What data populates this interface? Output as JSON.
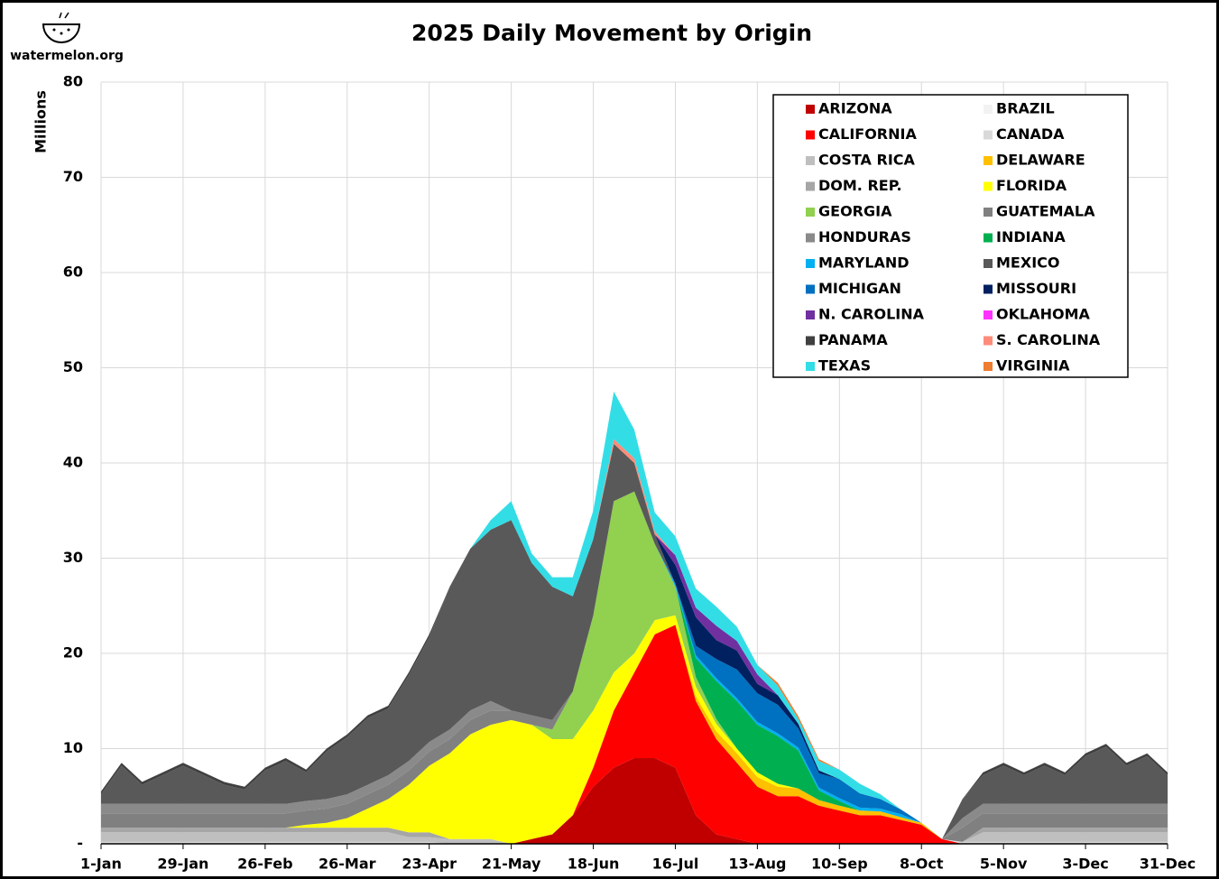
{
  "chart_data": {
    "type": "stacked_area",
    "title": "2025 Daily Movement by Origin",
    "logo": "watermelon.org",
    "y_label": "Millions",
    "x": [
      0,
      7,
      14,
      21,
      28,
      35,
      42,
      49,
      56,
      63,
      70,
      77,
      84,
      91,
      98,
      105,
      112,
      119,
      126,
      133,
      140,
      147,
      154,
      161,
      168,
      175,
      182,
      189,
      196,
      203,
      210,
      217,
      224,
      231,
      238,
      245,
      252,
      259,
      266,
      273,
      280,
      287,
      294,
      301,
      308,
      315,
      322,
      329,
      336,
      343,
      350,
      357,
      364
    ],
    "xlim": [
      0,
      364
    ],
    "xticks": [
      {
        "value": 0,
        "label": "1-Jan"
      },
      {
        "value": 28,
        "label": "29-Jan"
      },
      {
        "value": 56,
        "label": "26-Feb"
      },
      {
        "value": 84,
        "label": "26-Mar"
      },
      {
        "value": 112,
        "label": "23-Apr"
      },
      {
        "value": 140,
        "label": "21-May"
      },
      {
        "value": 168,
        "label": "18-Jun"
      },
      {
        "value": 196,
        "label": "16-Jul"
      },
      {
        "value": 224,
        "label": "13-Aug"
      },
      {
        "value": 252,
        "label": "10-Sep"
      },
      {
        "value": 280,
        "label": "8-Oct"
      },
      {
        "value": 308,
        "label": "5-Nov"
      },
      {
        "value": 336,
        "label": "3-Dec"
      },
      {
        "value": 364,
        "label": "31-Dec"
      }
    ],
    "ylim": [
      0,
      80
    ],
    "yticks": [
      {
        "value": 0,
        "label": "-"
      },
      10,
      20,
      30,
      40,
      50,
      60,
      70,
      80
    ],
    "grid": true,
    "legend": "upper right",
    "series": [
      {
        "name": "ARIZONA",
        "color": "#c00000",
        "values": [
          0,
          0,
          0,
          0,
          0,
          0,
          0,
          0,
          0,
          0,
          0,
          0,
          0,
          0,
          0,
          0,
          0,
          0,
          0,
          0,
          0,
          0.5,
          1,
          3,
          6,
          8,
          9,
          9,
          8,
          3,
          1,
          0.5,
          0,
          0,
          0,
          0,
          0,
          0,
          0,
          0,
          0,
          0,
          0,
          0,
          0,
          0,
          0,
          0,
          0,
          0,
          0,
          0,
          0
        ]
      },
      {
        "name": "BRAZIL",
        "color": "#f2f2f2",
        "values": [
          0,
          0,
          0,
          0,
          0,
          0,
          0,
          0,
          0,
          0,
          0,
          0,
          0,
          0,
          0,
          0,
          0,
          0,
          0,
          0,
          0,
          0,
          0,
          0,
          0,
          0,
          0,
          0,
          0,
          0,
          0,
          0,
          0,
          0,
          0,
          0,
          0,
          0,
          0,
          0,
          0,
          0,
          0,
          0,
          0,
          0,
          0,
          0,
          0,
          0,
          0,
          0,
          0
        ]
      },
      {
        "name": "CALIFORNIA",
        "color": "#ff0000",
        "values": [
          0,
          0,
          0,
          0,
          0,
          0,
          0,
          0,
          0,
          0,
          0,
          0,
          0,
          0,
          0,
          0,
          0,
          0,
          0,
          0,
          0,
          0,
          0,
          0,
          2,
          6,
          9,
          13,
          15,
          12,
          10,
          8,
          6,
          5,
          5,
          4,
          3.5,
          3,
          3,
          2.5,
          2,
          0.5,
          0,
          0,
          0,
          0,
          0,
          0,
          0,
          0,
          0,
          0,
          0
        ]
      },
      {
        "name": "CANADA",
        "color": "#d9d9d9",
        "values": [
          0.2,
          0.2,
          0.2,
          0.2,
          0.2,
          0.2,
          0.2,
          0.2,
          0.2,
          0.2,
          0.2,
          0.2,
          0.2,
          0.2,
          0.2,
          0.2,
          0.2,
          0,
          0,
          0,
          0,
          0,
          0,
          0,
          0,
          0,
          0,
          0,
          0,
          0,
          0,
          0,
          0,
          0,
          0,
          0,
          0,
          0,
          0,
          0,
          0,
          0,
          0.2,
          0.2,
          0.2,
          0.2,
          0.2,
          0.2,
          0.2,
          0.2,
          0.2,
          0.2,
          0.2
        ]
      },
      {
        "name": "COSTA RICA",
        "color": "#bfbfbf",
        "values": [
          1,
          1,
          1,
          1,
          1,
          1,
          1,
          1,
          1,
          1,
          1,
          1,
          1,
          1,
          1,
          0.5,
          0.5,
          0.5,
          0.5,
          0.5,
          0,
          0,
          0,
          0,
          0,
          0,
          0,
          0,
          0,
          0,
          0,
          0,
          0,
          0,
          0,
          0,
          0,
          0,
          0,
          0,
          0,
          0,
          0,
          1,
          1,
          1,
          1,
          1,
          1,
          1,
          1,
          1,
          1
        ]
      },
      {
        "name": "DELAWARE",
        "color": "#ffc000",
        "values": [
          0,
          0,
          0,
          0,
          0,
          0,
          0,
          0,
          0,
          0,
          0,
          0,
          0,
          0,
          0,
          0,
          0,
          0,
          0,
          0,
          0,
          0,
          0,
          0,
          0,
          0,
          0,
          0,
          0,
          0.5,
          0.8,
          1,
          1,
          1,
          0.8,
          0.6,
          0.5,
          0.5,
          0.4,
          0.3,
          0.2,
          0,
          0,
          0,
          0,
          0,
          0,
          0,
          0,
          0,
          0,
          0,
          0
        ]
      },
      {
        "name": "DOM. REP.",
        "color": "#a6a6a6",
        "values": [
          0.5,
          0.5,
          0.5,
          0.5,
          0.5,
          0.5,
          0.5,
          0.5,
          0.5,
          0.5,
          0.5,
          0.5,
          0.5,
          0.5,
          0.5,
          0.5,
          0.5,
          0,
          0,
          0,
          0,
          0,
          0,
          0,
          0,
          0,
          0,
          0,
          0,
          0,
          0,
          0,
          0,
          0,
          0,
          0,
          0,
          0,
          0,
          0,
          0,
          0,
          0,
          0.5,
          0.5,
          0.5,
          0.5,
          0.5,
          0.5,
          0.5,
          0.5,
          0.5,
          0.5
        ]
      },
      {
        "name": "FLORIDA",
        "color": "#ffff00",
        "values": [
          0,
          0,
          0,
          0,
          0,
          0,
          0,
          0,
          0,
          0,
          0.3,
          0.5,
          1,
          2,
          3,
          5,
          7,
          9,
          11,
          12,
          13,
          12,
          10,
          8,
          6,
          4,
          2,
          1.5,
          1,
          1,
          0.8,
          0.5,
          0.5,
          0.3,
          0,
          0,
          0,
          0,
          0,
          0,
          0,
          0,
          0,
          0,
          0,
          0,
          0,
          0,
          0,
          0,
          0,
          0,
          0
        ]
      },
      {
        "name": "GEORGIA",
        "color": "#92d050",
        "values": [
          0,
          0,
          0,
          0,
          0,
          0,
          0,
          0,
          0,
          0,
          0,
          0,
          0,
          0,
          0,
          0,
          0,
          0,
          0,
          0,
          0,
          0,
          1,
          5,
          10,
          18,
          17,
          8,
          3,
          1,
          0.5,
          0,
          0,
          0,
          0,
          0,
          0,
          0,
          0,
          0,
          0,
          0,
          0,
          0,
          0,
          0,
          0,
          0,
          0,
          0,
          0,
          0,
          0
        ]
      },
      {
        "name": "GUATEMALA",
        "color": "#808080",
        "values": [
          1.5,
          1.5,
          1.5,
          1.5,
          1.5,
          1.5,
          1.5,
          1.5,
          1.5,
          1.5,
          1.5,
          1.5,
          1.5,
          1.5,
          1.5,
          1.5,
          1.5,
          1.5,
          1.5,
          1.5,
          1,
          1,
          1,
          0,
          0,
          0,
          0,
          0,
          0,
          0,
          0,
          0,
          0,
          0,
          0,
          0,
          0,
          0,
          0,
          0,
          0,
          0,
          1.5,
          1.5,
          1.5,
          1.5,
          1.5,
          1.5,
          1.5,
          1.5,
          1.5,
          1.5,
          1.5
        ]
      },
      {
        "name": "HONDURAS",
        "color": "#8a8a8a",
        "values": [
          1,
          1,
          1,
          1,
          1,
          1,
          1,
          1,
          1,
          1,
          1,
          1,
          1,
          1,
          1,
          1,
          1,
          1,
          1,
          1,
          0,
          0,
          0,
          0,
          0,
          0,
          0,
          0,
          0,
          0,
          0,
          0,
          0,
          0,
          0,
          0,
          0,
          0,
          0,
          0,
          0,
          0,
          1,
          1,
          1,
          1,
          1,
          1,
          1,
          1,
          1,
          1,
          1
        ]
      },
      {
        "name": "INDIANA",
        "color": "#00b050",
        "values": [
          0,
          0,
          0,
          0,
          0,
          0,
          0,
          0,
          0,
          0,
          0,
          0,
          0,
          0,
          0,
          0,
          0,
          0,
          0,
          0,
          0,
          0,
          0,
          0,
          0,
          0,
          0,
          0,
          0,
          2,
          4,
          5,
          5,
          5,
          4,
          1,
          0.5,
          0,
          0,
          0,
          0,
          0,
          0,
          0,
          0,
          0,
          0,
          0,
          0,
          0,
          0,
          0,
          0
        ]
      },
      {
        "name": "MARYLAND",
        "color": "#00b0f0",
        "values": [
          0,
          0,
          0,
          0,
          0,
          0,
          0,
          0,
          0,
          0,
          0,
          0,
          0,
          0,
          0,
          0,
          0,
          0,
          0,
          0,
          0,
          0,
          0,
          0,
          0,
          0,
          0,
          0,
          0.3,
          0.3,
          0.3,
          0.3,
          0.3,
          0.3,
          0.3,
          0.3,
          0.3,
          0.3,
          0.3,
          0.3,
          0,
          0,
          0,
          0,
          0,
          0,
          0,
          0,
          0,
          0,
          0,
          0,
          0
        ]
      },
      {
        "name": "MEXICO",
        "color": "#595959",
        "values": [
          1,
          4,
          2,
          3,
          4,
          3,
          2,
          1.5,
          3.5,
          4.5,
          3,
          5,
          6,
          7,
          7,
          9,
          11,
          15,
          17,
          18,
          20,
          16,
          14,
          10,
          8,
          6,
          3,
          1,
          0,
          0,
          0,
          0,
          0,
          0,
          0,
          0,
          0,
          0,
          0,
          0,
          0,
          0,
          2,
          3,
          4,
          3,
          4,
          3,
          5,
          6,
          4,
          5,
          3
        ]
      },
      {
        "name": "MICHIGAN",
        "color": "#0070c0",
        "values": [
          0,
          0,
          0,
          0,
          0,
          0,
          0,
          0,
          0,
          0,
          0,
          0,
          0,
          0,
          0,
          0,
          0,
          0,
          0,
          0,
          0,
          0,
          0,
          0,
          0,
          0,
          0,
          0,
          0,
          1,
          2,
          3,
          3,
          3,
          2,
          1.5,
          2,
          1.5,
          1,
          0.5,
          0,
          0,
          0,
          0,
          0,
          0,
          0,
          0,
          0,
          0,
          0,
          0,
          0
        ]
      },
      {
        "name": "MISSOURI",
        "color": "#002060",
        "values": [
          0,
          0,
          0,
          0,
          0,
          0,
          0,
          0,
          0,
          0,
          0,
          0,
          0,
          0,
          0,
          0,
          0,
          0,
          0,
          0,
          0,
          0,
          0,
          0,
          0,
          0,
          0,
          0,
          2,
          3,
          2,
          2,
          1,
          1,
          0.5,
          0.3,
          0,
          0,
          0,
          0,
          0,
          0,
          0,
          0,
          0,
          0,
          0,
          0,
          0,
          0,
          0,
          0,
          0
        ]
      },
      {
        "name": "N. CAROLINA",
        "color": "#7030a0",
        "values": [
          0,
          0,
          0,
          0,
          0,
          0,
          0,
          0,
          0,
          0,
          0,
          0,
          0,
          0,
          0,
          0,
          0,
          0,
          0,
          0,
          0,
          0,
          0,
          0,
          0,
          0,
          0,
          0,
          1,
          1,
          1.5,
          1,
          1,
          0,
          0,
          0,
          0,
          0,
          0,
          0,
          0,
          0,
          0,
          0,
          0,
          0,
          0,
          0,
          0,
          0,
          0,
          0,
          0
        ]
      },
      {
        "name": "OKLAHOMA",
        "color": "#ff33ff",
        "values": [
          0,
          0,
          0,
          0,
          0,
          0,
          0,
          0,
          0,
          0,
          0,
          0,
          0,
          0,
          0,
          0,
          0,
          0,
          0,
          0,
          0,
          0,
          0,
          0,
          0,
          0,
          0,
          0,
          0,
          0,
          0,
          0,
          0,
          0,
          0,
          0,
          0,
          0,
          0,
          0,
          0,
          0,
          0,
          0,
          0,
          0,
          0,
          0,
          0,
          0,
          0,
          0,
          0
        ]
      },
      {
        "name": "PANAMA",
        "color": "#404040",
        "values": [
          0.3,
          0.3,
          0.3,
          0.3,
          0.3,
          0.3,
          0.3,
          0.3,
          0.3,
          0.3,
          0.3,
          0.3,
          0.3,
          0.3,
          0.3,
          0.3,
          0.3,
          0,
          0,
          0,
          0,
          0,
          0,
          0,
          0,
          0,
          0,
          0,
          0,
          0,
          0,
          0,
          0,
          0,
          0,
          0,
          0,
          0,
          0,
          0,
          0,
          0,
          0,
          0.3,
          0.3,
          0.3,
          0.3,
          0.3,
          0.3,
          0.3,
          0.3,
          0.3,
          0.3
        ]
      },
      {
        "name": "S. CAROLINA",
        "color": "#ff8c7a",
        "values": [
          0,
          0,
          0,
          0,
          0,
          0,
          0,
          0,
          0,
          0,
          0,
          0,
          0,
          0,
          0,
          0,
          0,
          0,
          0,
          0,
          0,
          0,
          0,
          0,
          0,
          0.5,
          0.5,
          0.3,
          0,
          0,
          0,
          0,
          0,
          0,
          0,
          0,
          0,
          0,
          0,
          0,
          0,
          0,
          0,
          0,
          0,
          0,
          0,
          0,
          0,
          0,
          0,
          0,
          0
        ]
      },
      {
        "name": "TEXAS",
        "color": "#33dde6",
        "values": [
          0,
          0,
          0,
          0,
          0,
          0,
          0,
          0,
          0,
          0,
          0,
          0,
          0,
          0,
          0,
          0,
          0,
          0,
          0,
          1,
          2,
          1,
          1,
          2,
          3,
          5,
          3,
          2,
          2,
          2,
          2,
          1.5,
          1,
          1,
          0.5,
          1,
          1,
          1,
          0.5,
          0,
          0,
          0,
          0,
          0,
          0,
          0,
          0,
          0,
          0,
          0,
          0,
          0,
          0
        ]
      },
      {
        "name": "VIRGINIA",
        "color": "#ed7d31",
        "values": [
          0,
          0,
          0,
          0,
          0,
          0,
          0,
          0,
          0,
          0,
          0,
          0,
          0,
          0,
          0,
          0,
          0,
          0,
          0,
          0,
          0,
          0,
          0,
          0,
          0,
          0,
          0,
          0,
          0,
          0,
          0,
          0,
          0,
          0.3,
          0.3,
          0.2,
          0,
          0,
          0,
          0,
          0,
          0,
          0,
          0,
          0,
          0,
          0,
          0,
          0,
          0,
          0,
          0,
          0
        ]
      }
    ]
  }
}
